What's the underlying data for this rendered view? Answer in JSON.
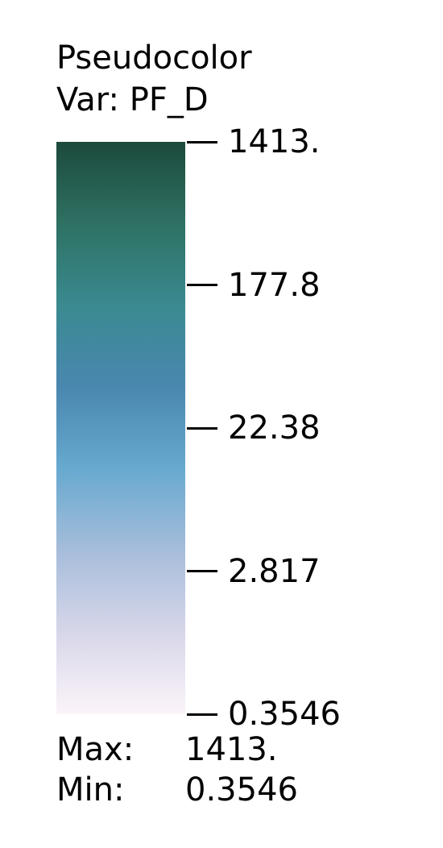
{
  "chart_data": {
    "type": "colorbar",
    "title": "Pseudocolor",
    "variable_label": "Var: PF_D",
    "scale": "log",
    "range": [
      0.3546,
      1413.0
    ],
    "ticks": [
      {
        "value": 1413.0,
        "label": "1413."
      },
      {
        "value": 177.8,
        "label": "177.8"
      },
      {
        "value": 22.38,
        "label": "22.38"
      },
      {
        "value": 2.817,
        "label": "2.817"
      },
      {
        "value": 0.3546,
        "label": "0.3546"
      }
    ],
    "colormap": [
      "#fbf4f9",
      "#d7d6e9",
      "#a6bddb",
      "#67a9cf",
      "#4a87b0",
      "#3a8a90",
      "#2e7163",
      "#1c4a3c"
    ],
    "max_label": "Max:",
    "max_value": "1413.",
    "min_label": "Min:",
    "min_value": "0.3546"
  }
}
